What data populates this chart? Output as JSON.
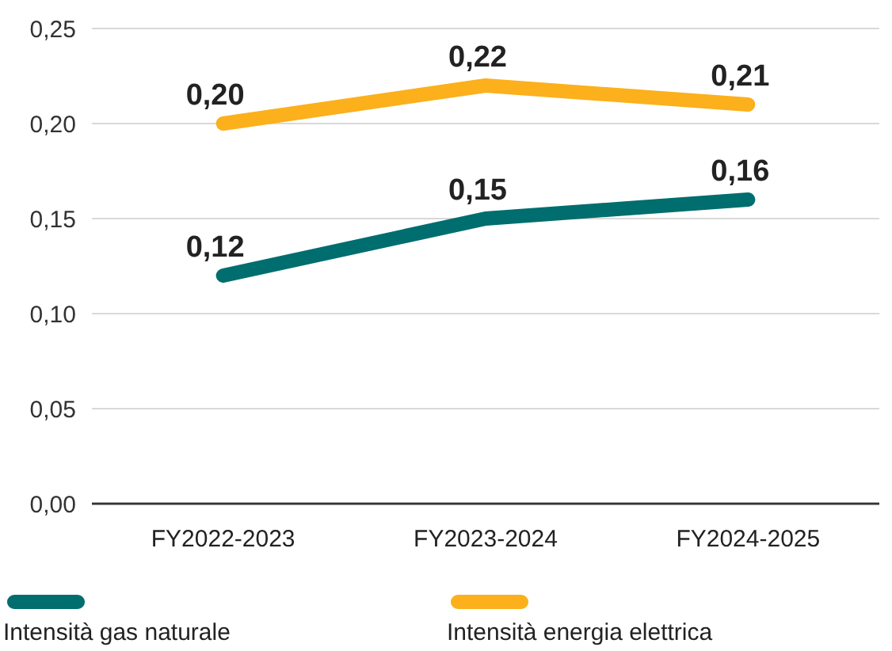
{
  "chart_data": {
    "type": "line",
    "categories": [
      "FY2022-2023",
      "FY2023-2024",
      "FY2024-2025"
    ],
    "series": [
      {
        "name": "Intensità gas naturale",
        "color": "#006d6f",
        "values": [
          0.12,
          0.15,
          0.16
        ],
        "value_labels": [
          "0,12",
          "0,15",
          "0,16"
        ]
      },
      {
        "name": "Intensità energia elettrica",
        "color": "#fbb01c",
        "values": [
          0.2,
          0.22,
          0.21
        ],
        "value_labels": [
          "0,20",
          "0,22",
          "0,21"
        ]
      }
    ],
    "ylim": [
      0,
      0.25
    ],
    "yticks": [
      {
        "value": 0,
        "label": "0,00"
      },
      {
        "value": 0.05,
        "label": "0,05"
      },
      {
        "value": 0.1,
        "label": "0,10"
      },
      {
        "value": 0.15,
        "label": "0,15"
      },
      {
        "value": 0.2,
        "label": "0,20"
      },
      {
        "value": 0.25,
        "label": "0,25"
      }
    ],
    "grid": "y",
    "legend": "bottom",
    "marker": "none",
    "line_style": "solid"
  }
}
